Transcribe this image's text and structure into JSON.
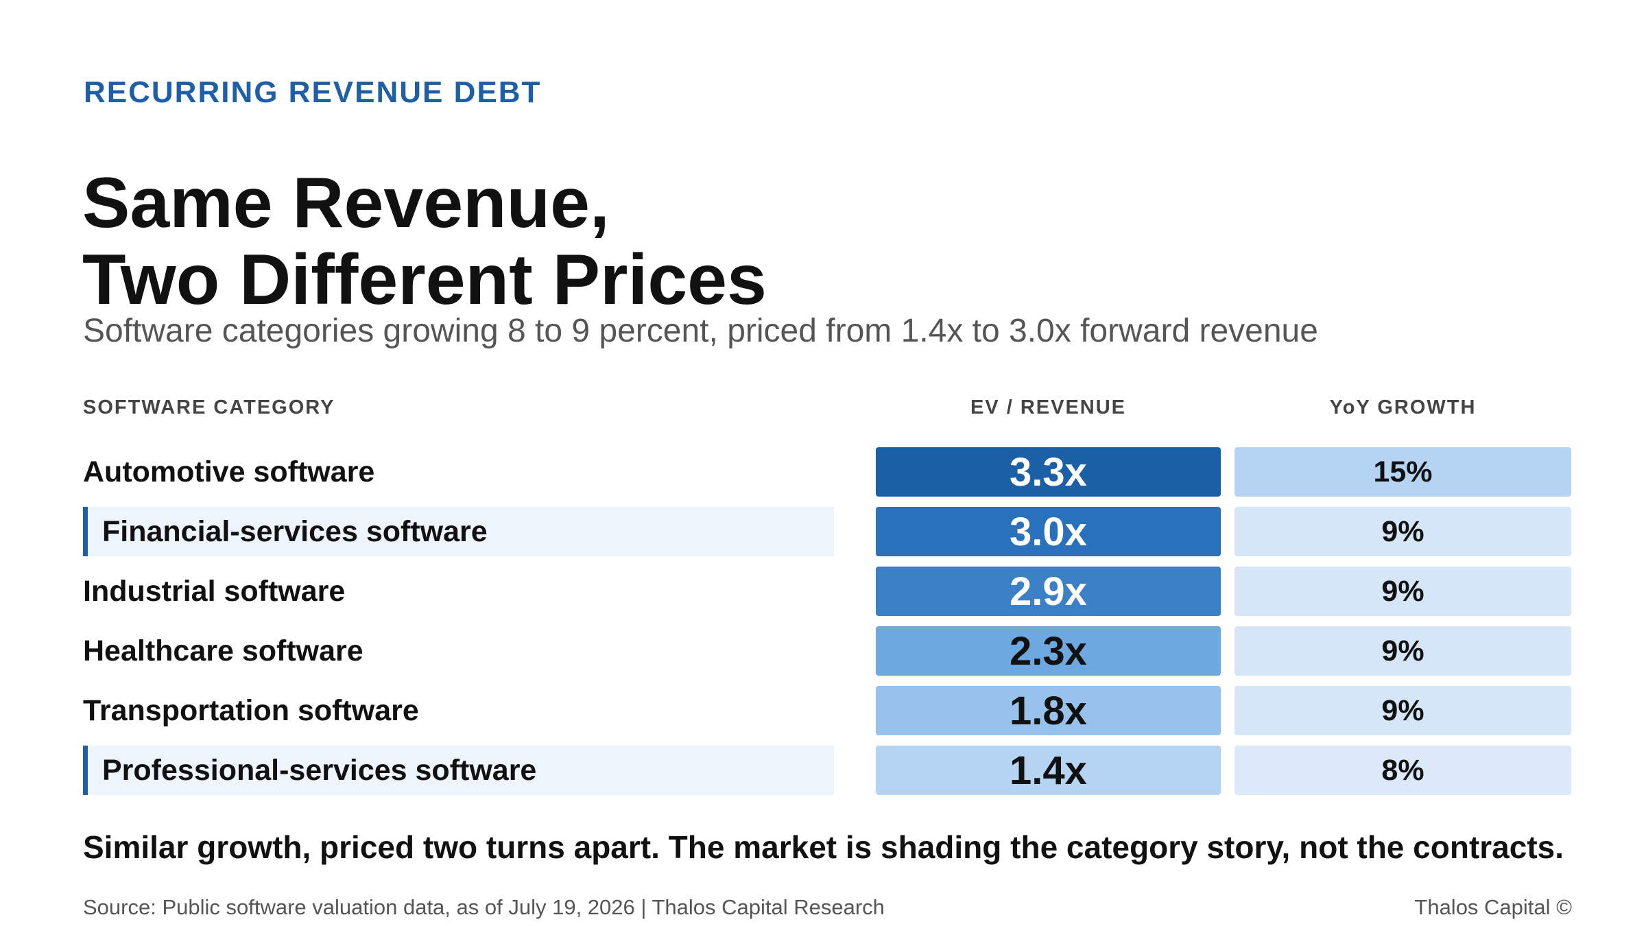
{
  "eyebrow": "RECURRING REVENUE DEBT",
  "title_lines": [
    "Same Revenue,",
    "Two Different Prices"
  ],
  "subtitle": "Software categories growing 8 to 9 percent, priced from 1.4x to 3.0x forward revenue",
  "columns": {
    "category": "SOFTWARE CATEGORY",
    "ev_revenue": "EV / REVENUE",
    "yoy_growth": "YoY GROWTH"
  },
  "chart_data": {
    "type": "table",
    "title": "Same Revenue, Two Different Prices",
    "rows": [
      {
        "category": "Automotive software",
        "ev_revenue": 3.3,
        "ev_label": "3.3x",
        "yoy_growth": 15,
        "yoy_label": "15%",
        "highlighted": false,
        "ev_color": "#1b5fa6",
        "ev_text_color": "#ffffff",
        "yoy_color": "#b5d3f2"
      },
      {
        "category": "Financial-services software",
        "ev_revenue": 3.0,
        "ev_label": "3.0x",
        "yoy_growth": 9,
        "yoy_label": "9%",
        "highlighted": true,
        "ev_color": "#2a71bb",
        "ev_text_color": "#ffffff",
        "yoy_color": "#d6e6f9"
      },
      {
        "category": "Industrial software",
        "ev_revenue": 2.9,
        "ev_label": "2.9x",
        "yoy_growth": 9,
        "yoy_label": "9%",
        "highlighted": false,
        "ev_color": "#3b80c6",
        "ev_text_color": "#ffffff",
        "yoy_color": "#d6e6f9"
      },
      {
        "category": "Healthcare software",
        "ev_revenue": 2.3,
        "ev_label": "2.3x",
        "yoy_growth": 9,
        "yoy_label": "9%",
        "highlighted": false,
        "ev_color": "#6ea8e0",
        "ev_text_color": "#111111",
        "yoy_color": "#d6e6f9"
      },
      {
        "category": "Transportation software",
        "ev_revenue": 1.8,
        "ev_label": "1.8x",
        "yoy_growth": 9,
        "yoy_label": "9%",
        "highlighted": false,
        "ev_color": "#98c2ec",
        "ev_text_color": "#111111",
        "yoy_color": "#d6e6f9"
      },
      {
        "category": "Professional-services software",
        "ev_revenue": 1.4,
        "ev_label": "1.4x",
        "yoy_growth": 8,
        "yoy_label": "8%",
        "highlighted": true,
        "ev_color": "#b5d3f2",
        "ev_text_color": "#111111",
        "yoy_color": "#dbe9fa"
      }
    ]
  },
  "colors": {
    "accent": "#1f5fa8",
    "highlight_bg": "#eef4fc"
  },
  "takeaway": "Similar growth, priced two turns apart. The market is shading the category story, not the contracts.",
  "source": "Source: Public software valuation data, as of July 19, 2026 | Thalos Capital Research",
  "brand": "Thalos Capital ©"
}
